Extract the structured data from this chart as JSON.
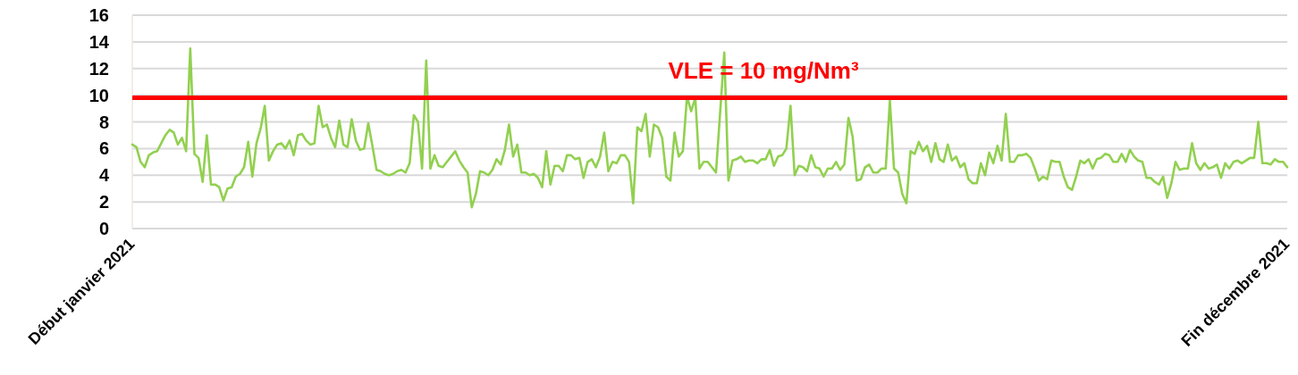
{
  "chart_data": {
    "type": "line",
    "categories": [
      "Début janvier 2021",
      null,
      null,
      null,
      null,
      null,
      null,
      null,
      null,
      null,
      null,
      null,
      null,
      null,
      null,
      null,
      null,
      null,
      null,
      null,
      null,
      null,
      null,
      null,
      null,
      null,
      null,
      null,
      null,
      null,
      null,
      null,
      null,
      null,
      null,
      null,
      null,
      null,
      null,
      null,
      null,
      null,
      null,
      null,
      null,
      null,
      null,
      null,
      null,
      null,
      null,
      null,
      null,
      null,
      null,
      null,
      null,
      null,
      null,
      null,
      null,
      null,
      null,
      null,
      null,
      null,
      null,
      null,
      null,
      null,
      null,
      null,
      null,
      null,
      null,
      null,
      null,
      null,
      null,
      null,
      null,
      null,
      null,
      null,
      null,
      null,
      null,
      null,
      null,
      null,
      null,
      null,
      null,
      null,
      null,
      null,
      null,
      null,
      null,
      null,
      null,
      null,
      null,
      null,
      null,
      null,
      null,
      null,
      null,
      null,
      null,
      null,
      null,
      null,
      null,
      null,
      null,
      null,
      null,
      null,
      null,
      null,
      null,
      null,
      null,
      null,
      null,
      null,
      null,
      null,
      null,
      null,
      null,
      null,
      null,
      null,
      null,
      null,
      null,
      null,
      null,
      null,
      null,
      null,
      null,
      null,
      null,
      null,
      null,
      null,
      null,
      null,
      null,
      null,
      null,
      null,
      null,
      null,
      null,
      null,
      null,
      null,
      null,
      null,
      null,
      null,
      null,
      null,
      null,
      null,
      null,
      null,
      null,
      null,
      null,
      null,
      null,
      null,
      null,
      null,
      null,
      null,
      null,
      null,
      null,
      null,
      null,
      null,
      null,
      null,
      null,
      null,
      null,
      null,
      null,
      null,
      null,
      null,
      null,
      null,
      null,
      null,
      null,
      null,
      null,
      null,
      null,
      null,
      null,
      null,
      null,
      null,
      null,
      null,
      null,
      null,
      null,
      null,
      null,
      null,
      null,
      null,
      null,
      null,
      null,
      null,
      null,
      null,
      null,
      null,
      null,
      null,
      null,
      null,
      null,
      null,
      null,
      null,
      null,
      null,
      null,
      null,
      null,
      null,
      null,
      null,
      null,
      null,
      null,
      null,
      null,
      null,
      null,
      null,
      null,
      null,
      null,
      null,
      null,
      null,
      null,
      null,
      null,
      null,
      null,
      null,
      null,
      null,
      null,
      null,
      null,
      null,
      null,
      null,
      null,
      null,
      null,
      null,
      null,
      "Fin décembre 2021"
    ],
    "series": [
      {
        "color": "#92d050",
        "values": [
          6.3,
          6.1,
          5.0,
          4.6,
          5.5,
          5.7,
          5.8,
          6.4,
          7.0,
          7.4,
          7.2,
          6.3,
          6.8,
          5.8,
          13.5,
          5.6,
          5.3,
          3.5,
          7.0,
          3.3,
          3.3,
          3.1,
          2.1,
          3.0,
          3.1,
          3.9,
          4.1,
          4.6,
          6.5,
          3.9,
          6.4,
          7.5,
          9.2,
          5.1,
          5.8,
          6.3,
          6.4,
          6.0,
          6.6,
          5.5,
          7.0,
          7.1,
          6.6,
          6.3,
          6.4,
          9.2,
          7.6,
          7.8,
          6.8,
          6.1,
          8.1,
          6.3,
          6.1,
          8.2,
          6.6,
          5.9,
          6.0,
          7.9,
          6.2,
          4.4,
          4.3,
          4.1,
          4.0,
          4.1,
          4.3,
          4.4,
          4.2,
          4.9,
          8.5,
          8.0,
          4.5,
          12.6,
          4.5,
          5.5,
          4.7,
          4.6,
          5.0,
          5.4,
          5.8,
          5.1,
          4.6,
          4.2,
          1.6,
          2.6,
          4.3,
          4.2,
          4.0,
          4.4,
          5.2,
          4.8,
          5.9,
          7.8,
          5.4,
          6.3,
          4.2,
          4.2,
          4.0,
          4.1,
          3.8,
          3.1,
          5.8,
          3.3,
          4.7,
          4.7,
          4.3,
          5.5,
          5.5,
          5.2,
          5.3,
          3.8,
          5.0,
          5.2,
          4.6,
          5.4,
          7.2,
          4.3,
          5.0,
          4.9,
          5.5,
          5.5,
          5.0,
          1.9,
          7.6,
          7.3,
          8.6,
          5.4,
          7.8,
          7.6,
          6.8,
          3.9,
          3.6,
          7.2,
          5.4,
          5.8,
          9.9,
          8.8,
          9.8,
          4.5,
          5.0,
          5.0,
          4.6,
          4.2,
          8.7,
          13.2,
          3.6,
          5.1,
          5.2,
          5.4,
          5.0,
          5.1,
          5.1,
          4.9,
          5.2,
          5.2,
          5.9,
          4.7,
          5.4,
          5.5,
          6.0,
          9.2,
          4.0,
          4.7,
          4.6,
          4.3,
          5.5,
          4.6,
          4.5,
          3.9,
          4.5,
          4.5,
          5.0,
          4.4,
          4.8,
          8.3,
          6.9,
          3.6,
          3.7,
          4.6,
          4.8,
          4.2,
          4.2,
          4.5,
          4.5,
          9.6,
          4.5,
          4.2,
          2.6,
          1.9,
          5.8,
          5.6,
          6.5,
          5.8,
          6.2,
          5.0,
          6.4,
          5.2,
          5.0,
          6.3,
          5.1,
          5.4,
          4.6,
          4.9,
          3.7,
          3.4,
          3.4,
          4.9,
          4.0,
          5.7,
          4.9,
          6.2,
          5.1,
          8.6,
          5.0,
          5.0,
          5.5,
          5.5,
          5.6,
          5.3,
          4.5,
          3.6,
          3.9,
          3.7,
          5.1,
          5.0,
          5.0,
          3.9,
          3.1,
          2.9,
          3.9,
          5.1,
          4.9,
          5.2,
          4.5,
          5.2,
          5.3,
          5.6,
          5.5,
          5.0,
          5.0,
          5.6,
          5.0,
          5.9,
          5.4,
          5.1,
          5.0,
          3.8,
          3.8,
          3.5,
          3.3,
          3.9,
          2.3,
          3.4,
          5.0,
          4.4,
          4.5,
          4.5,
          6.4,
          4.9,
          4.4,
          4.9,
          4.5,
          4.6,
          4.8,
          3.8,
          4.9,
          4.5,
          5.0,
          5.1,
          4.9,
          5.1,
          5.3,
          5.3,
          8.0,
          4.9,
          4.9,
          4.8,
          5.2,
          5.0,
          5.0,
          4.6
        ]
      }
    ],
    "ylim": [
      0,
      16
    ],
    "yticks": [
      0,
      2,
      4,
      6,
      8,
      10,
      12,
      14,
      16
    ],
    "grid": "y",
    "ref_lines": [
      {
        "axis": "y",
        "value": 9.8,
        "label": "VLE = 10 mg/Nm³",
        "color": "#ff0000"
      }
    ]
  }
}
